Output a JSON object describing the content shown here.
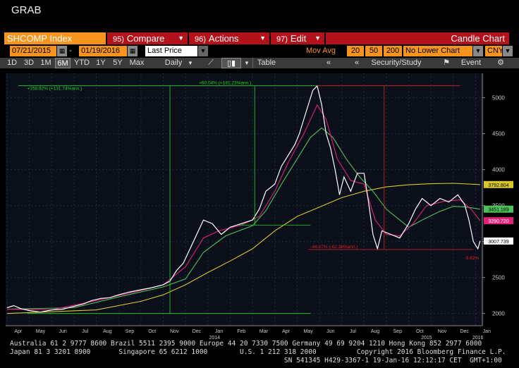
{
  "window": {
    "title": "GRAB"
  },
  "toolbar": {
    "ticker": "SHCOMP Index",
    "compare": {
      "num": "95)",
      "label": "Compare"
    },
    "actions": {
      "num": "96)",
      "label": "Actions"
    },
    "edit": {
      "num": "97)",
      "label": "Edit"
    },
    "chart_type": "Candle Chart"
  },
  "range": {
    "start_date": "07/21/2015",
    "end_date": "01/19/2016",
    "dash": "-",
    "price_field": "Last Price",
    "mov_avg_label": "Mov Avg",
    "ma1": "20",
    "ma2": "50",
    "ma3": "200",
    "lower_chart": "No Lower Chart",
    "currency": "CNY"
  },
  "periods": [
    "1D",
    "3D",
    "1M",
    "6M",
    "YTD",
    "1Y",
    "5Y",
    "Max"
  ],
  "active_period": "6M",
  "frequency": "Daily",
  "table_label": "Table",
  "security_label": "Security/Study",
  "event_label": "Event",
  "colors": {
    "price": "#ffffff",
    "ma20": "#e0207a",
    "ma50": "#4fc15a",
    "ma200": "#d8c82a",
    "annot_green": "#26d626",
    "annot_red": "#e0202a",
    "orange": "#f7941d",
    "red_btn": "#b4121a"
  },
  "chart_data": {
    "type": "line",
    "x_ticks": [
      "Apr",
      "May",
      "Jun",
      "Jul",
      "Aug",
      "Sep",
      "Oct",
      "Nov",
      "Dec",
      "Jan",
      "Feb",
      "Mar",
      "Apr",
      "May",
      "Jun",
      "Jul",
      "Aug",
      "Sep",
      "Oct",
      "Nov",
      "Dec",
      "Jan"
    ],
    "x_years": [
      "2014",
      "2015",
      "2016"
    ],
    "y_ticks": [
      2000,
      2500,
      3000,
      3500,
      4000,
      4500,
      5000
    ],
    "ylim": [
      1850,
      5320
    ],
    "price": [
      [
        0,
        2080
      ],
      [
        0.3,
        2110
      ],
      [
        0.6,
        2070
      ],
      [
        1,
        2040
      ],
      [
        1.5,
        2020
      ],
      [
        2,
        2050
      ],
      [
        2.5,
        2060
      ],
      [
        3,
        2100
      ],
      [
        3.4,
        2130
      ],
      [
        3.8,
        2180
      ],
      [
        4.2,
        2210
      ],
      [
        4.6,
        2220
      ],
      [
        5,
        2260
      ],
      [
        5.5,
        2300
      ],
      [
        6,
        2330
      ],
      [
        6.5,
        2360
      ],
      [
        7,
        2400
      ],
      [
        7.3,
        2450
      ],
      [
        7.6,
        2600
      ],
      [
        7.9,
        2700
      ],
      [
        8.2,
        2900
      ],
      [
        8.5,
        3100
      ],
      [
        8.8,
        3300
      ],
      [
        9.2,
        3250
      ],
      [
        9.6,
        3100
      ],
      [
        10,
        3200
      ],
      [
        10.5,
        3250
      ],
      [
        11,
        3300
      ],
      [
        11.3,
        3450
      ],
      [
        11.6,
        3700
      ],
      [
        12,
        3800
      ],
      [
        12.3,
        4050
      ],
      [
        12.6,
        4200
      ],
      [
        12.9,
        4350
      ],
      [
        13.1,
        4500
      ],
      [
        13.4,
        4800
      ],
      [
        13.7,
        5100
      ],
      [
        13.9,
        5166
      ],
      [
        14.1,
        4900
      ],
      [
        14.3,
        4500
      ],
      [
        14.5,
        4300
      ],
      [
        14.7,
        4000
      ],
      [
        14.9,
        3650
      ],
      [
        15.1,
        3900
      ],
      [
        15.4,
        3700
      ],
      [
        15.7,
        3950
      ],
      [
        16,
        3950
      ],
      [
        16.2,
        3550
      ],
      [
        16.4,
        3100
      ],
      [
        16.6,
        2900
      ],
      [
        16.8,
        3150
      ],
      [
        17.2,
        3100
      ],
      [
        17.6,
        3050
      ],
      [
        18,
        3250
      ],
      [
        18.3,
        3450
      ],
      [
        18.6,
        3600
      ],
      [
        19,
        3500
      ],
      [
        19.4,
        3600
      ],
      [
        19.8,
        3550
      ],
      [
        20.2,
        3650
      ],
      [
        20.5,
        3520
      ],
      [
        20.7,
        3300
      ],
      [
        20.9,
        3000
      ],
      [
        21.1,
        2900
      ],
      [
        21.2,
        3010
      ]
    ],
    "ma20": [
      [
        0,
        2060
      ],
      [
        2,
        2050
      ],
      [
        4,
        2180
      ],
      [
        6,
        2320
      ],
      [
        7,
        2400
      ],
      [
        8,
        2650
      ],
      [
        8.8,
        3050
      ],
      [
        9.5,
        3150
      ],
      [
        10.5,
        3230
      ],
      [
        11.3,
        3350
      ],
      [
        12,
        3700
      ],
      [
        12.6,
        4100
      ],
      [
        13.3,
        4500
      ],
      [
        13.9,
        4900
      ],
      [
        14.3,
        4700
      ],
      [
        14.8,
        4150
      ],
      [
        15.4,
        3850
      ],
      [
        16,
        3800
      ],
      [
        16.5,
        3300
      ],
      [
        17,
        3100
      ],
      [
        17.6,
        3080
      ],
      [
        18.2,
        3250
      ],
      [
        18.8,
        3500
      ],
      [
        19.6,
        3560
      ],
      [
        20.3,
        3580
      ],
      [
        20.8,
        3450
      ],
      [
        21.2,
        3290
      ]
    ],
    "ma50": [
      [
        0,
        2060
      ],
      [
        3,
        2080
      ],
      [
        5,
        2230
      ],
      [
        7,
        2370
      ],
      [
        8,
        2480
      ],
      [
        8.8,
        2850
      ],
      [
        9.8,
        3080
      ],
      [
        11,
        3220
      ],
      [
        11.6,
        3430
      ],
      [
        12.3,
        3800
      ],
      [
        13,
        4150
      ],
      [
        13.6,
        4450
      ],
      [
        14.1,
        4580
      ],
      [
        14.6,
        4450
      ],
      [
        15.2,
        4150
      ],
      [
        15.8,
        3900
      ],
      [
        16.4,
        3700
      ],
      [
        17,
        3450
      ],
      [
        17.6,
        3300
      ],
      [
        18,
        3200
      ],
      [
        18.6,
        3300
      ],
      [
        19.4,
        3420
      ],
      [
        20,
        3490
      ],
      [
        20.6,
        3480
      ],
      [
        21.2,
        3451
      ]
    ],
    "ma200": [
      [
        0,
        2000
      ],
      [
        4,
        2050
      ],
      [
        6,
        2170
      ],
      [
        7,
        2260
      ],
      [
        8,
        2400
      ],
      [
        9,
        2570
      ],
      [
        10,
        2730
      ],
      [
        11,
        2900
      ],
      [
        12,
        3150
      ],
      [
        13,
        3350
      ],
      [
        14,
        3480
      ],
      [
        15,
        3610
      ],
      [
        16,
        3700
      ],
      [
        17,
        3760
      ],
      [
        18,
        3790
      ],
      [
        19,
        3805
      ],
      [
        20,
        3810
      ],
      [
        21.2,
        3793
      ]
    ],
    "last_values": {
      "ma200": "3792.804",
      "ma50": "3451.189",
      "ma20": "3290.720",
      "price": "3007.739"
    },
    "annotations": {
      "rise1": "+158.82% (+131.74%ann.)",
      "rise2": "+60.04% (+181.23%ann.)",
      "fall": "-44.07% (-62.38%ann.)",
      "fall_small": "-9.82%"
    }
  },
  "footer": {
    "line1": "Australia 61 2 9777 8600 Brazil 5511 2395 9000 Europe 44 20 7330 7500 Germany 49 69 9204 1210 Hong Kong 852 2977 6000",
    "line2": "Japan 81 3 3201 8900       Singapore 65 6212 1000        U.S. 1 212 318 2000          Copyright 2016 Bloomberg Finance L.P.",
    "line3": "                                                                    SN 541345 H429-3367-1 19-Jan-16 12:12:17 CET  GMT+1:00"
  }
}
